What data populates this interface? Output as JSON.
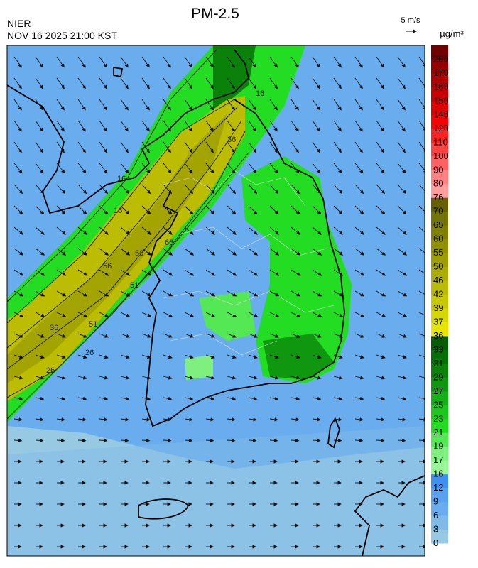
{
  "header": {
    "title": "PM-2.5",
    "agency": "NIER",
    "timestamp": "NOV 16 2025 21:00 KST",
    "wind_scale": "5 m/s",
    "unit": "µg/m³"
  },
  "colorbar": {
    "ticks": [
      0,
      3,
      6,
      9,
      12,
      16,
      17,
      19,
      21,
      23,
      25,
      27,
      29,
      31,
      33,
      36,
      37,
      39,
      42,
      46,
      50,
      55,
      60,
      65,
      70,
      76,
      80,
      90,
      100,
      110,
      120,
      140,
      150,
      160,
      170,
      200
    ],
    "colors": [
      "#97c9e3",
      "#80bbe8",
      "#6aadee",
      "#5aa2f0",
      "#3f90f0",
      "#98f598",
      "#7ff07f",
      "#55e855",
      "#22dd22",
      "#1bc81b",
      "#15b015",
      "#0f980f",
      "#0a820a",
      "#066f06",
      "#035d03",
      "#e6e600",
      "#d6d600",
      "#c8c800",
      "#baba00",
      "#acac00",
      "#9e9e00",
      "#909000",
      "#828200",
      "#747400",
      "#676000",
      "#ff9c9c",
      "#ff8080",
      "#ff6262",
      "#ff4242",
      "#ff2222",
      "#ff0000",
      "#e00000",
      "#c80000",
      "#b00000",
      "#980000",
      "#700000"
    ]
  },
  "map": {
    "contour_labels": [
      "16",
      "56",
      "66",
      "51",
      "26",
      "16",
      "36",
      "51",
      "56",
      "36",
      "26",
      "16"
    ]
  }
}
